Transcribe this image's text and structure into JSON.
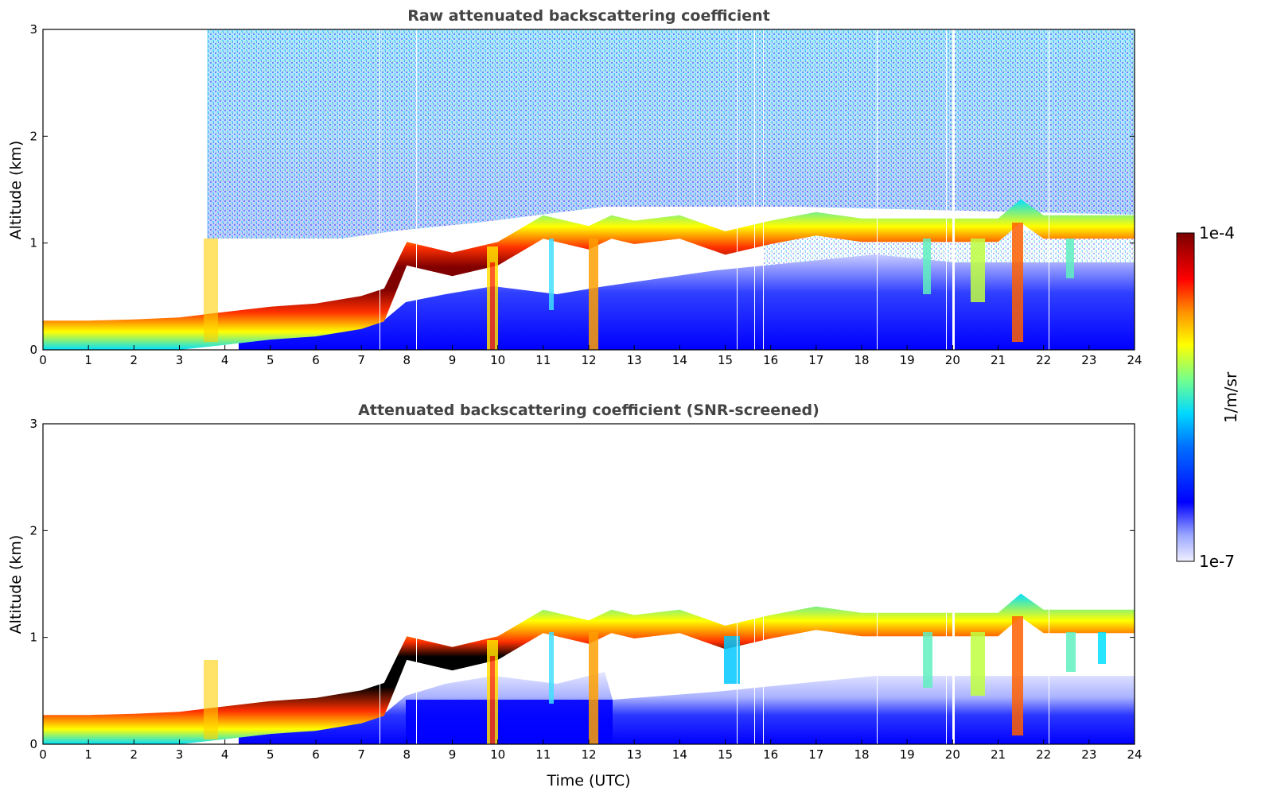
{
  "chart_data": [
    {
      "type": "heatmap",
      "title": "Raw attenuated backscattering coefficient",
      "xlabel": "",
      "ylabel": "Altitude (km)",
      "xlim": [
        0,
        24
      ],
      "ylim": [
        0,
        3
      ],
      "xticks": [
        0,
        1,
        2,
        3,
        4,
        5,
        6,
        7,
        8,
        9,
        10,
        11,
        12,
        13,
        14,
        15,
        16,
        17,
        18,
        19,
        20,
        21,
        22,
        23,
        24
      ],
      "yticks": [
        0,
        1,
        2,
        3
      ],
      "cloud_layer": {
        "time_h": [
          0,
          1,
          2,
          3,
          4,
          5,
          6,
          7,
          7.5,
          8,
          9,
          10,
          11,
          12,
          12.5,
          13,
          14,
          15,
          16,
          17,
          18,
          19,
          20,
          21,
          21.5,
          22,
          23,
          24
        ],
        "altitude_km": [
          0.12,
          0.12,
          0.13,
          0.15,
          0.2,
          0.25,
          0.28,
          0.35,
          0.42,
          0.9,
          0.8,
          0.9,
          1.15,
          1.05,
          1.15,
          1.1,
          1.15,
          1.0,
          1.1,
          1.18,
          1.12,
          1.12,
          1.12,
          1.12,
          1.3,
          1.15,
          1.15,
          1.15
        ]
      }
    },
    {
      "type": "heatmap",
      "title": "Attenuated backscattering coefficient (SNR-screened)",
      "xlabel": "Time (UTC)",
      "ylabel": "Altitude (km)",
      "xlim": [
        0,
        24
      ],
      "ylim": [
        0,
        3
      ],
      "xticks": [
        0,
        1,
        2,
        3,
        4,
        5,
        6,
        7,
        8,
        9,
        10,
        11,
        12,
        13,
        14,
        15,
        16,
        17,
        18,
        19,
        20,
        21,
        22,
        23,
        24
      ],
      "yticks": [
        0,
        1,
        2,
        3
      ]
    }
  ],
  "colorbar": {
    "label": "1/m/sr",
    "max_label": "1e-4",
    "min_label": "1e-7",
    "colors": [
      "#f0f0ff",
      "#b0b8ff",
      "#0000ff",
      "#0080ff",
      "#00e0ff",
      "#80ff80",
      "#ffff00",
      "#ff8000",
      "#ff0000",
      "#800000"
    ]
  }
}
